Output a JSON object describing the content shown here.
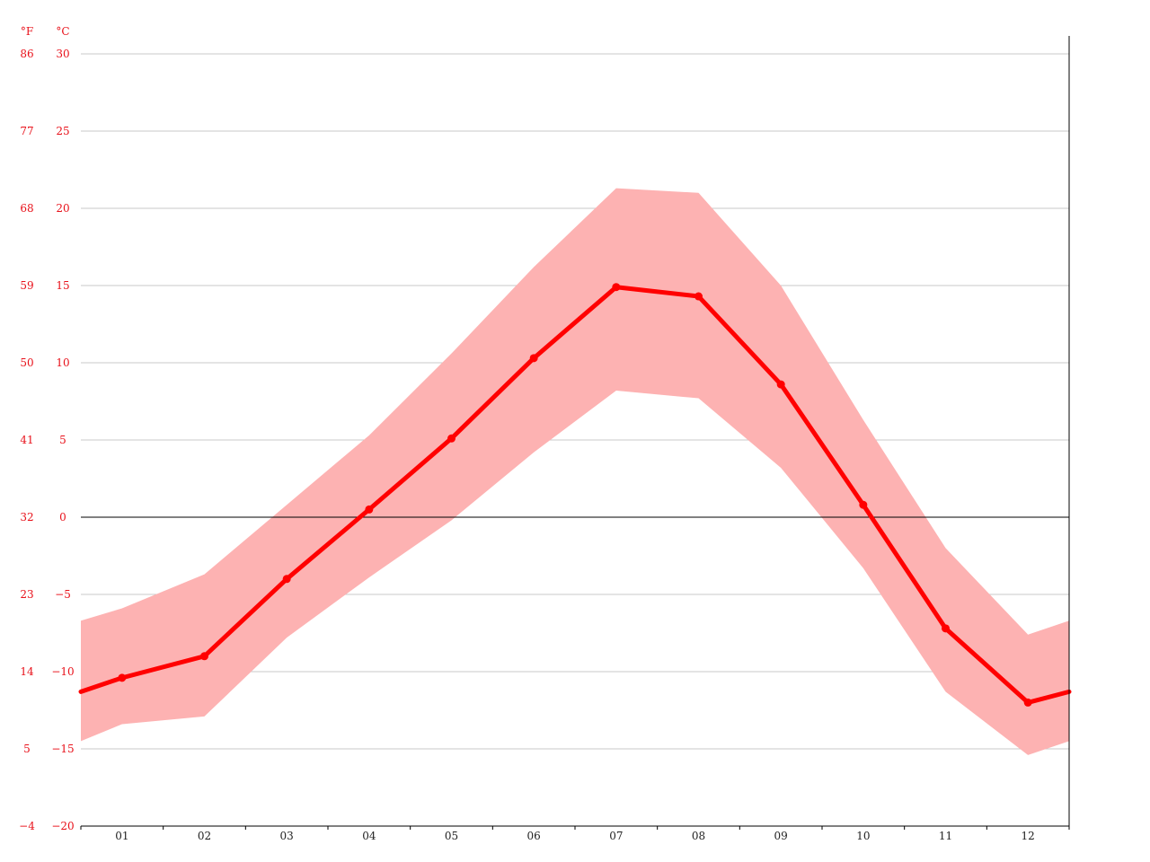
{
  "chart_data": {
    "type": "line",
    "categories": [
      "01",
      "02",
      "03",
      "04",
      "05",
      "06",
      "07",
      "08",
      "09",
      "10",
      "11",
      "12"
    ],
    "series": [
      {
        "role": "mean",
        "values": [
          -10.4,
          -9.0,
          -4.0,
          0.5,
          5.1,
          10.3,
          14.9,
          14.3,
          8.6,
          0.8,
          -7.2,
          -12.0
        ]
      },
      {
        "role": "max",
        "values": [
          -5.9,
          -3.7,
          0.8,
          5.3,
          10.6,
          16.2,
          21.3,
          21.0,
          15.0,
          6.3,
          -2.0,
          -7.6
        ]
      },
      {
        "role": "min",
        "values": [
          -13.4,
          -12.9,
          -7.8,
          -3.9,
          -0.2,
          4.2,
          8.2,
          7.7,
          3.2,
          -3.3,
          -11.3,
          -15.4
        ]
      }
    ],
    "edge_values": {
      "mean": {
        "start": -11.3,
        "end": -11.3
      },
      "max": {
        "start": -6.7,
        "end": -6.7
      },
      "min": {
        "start": -14.5,
        "end": -14.5
      }
    },
    "title": "",
    "xlabel": "",
    "ylabel": "",
    "units": {
      "fahrenheit": "°F",
      "celsius": "°C"
    },
    "ylim": [
      -20,
      30
    ],
    "y_ticks_celsius": [
      "30",
      "25",
      "20",
      "15",
      "10",
      "5",
      "0",
      "−5",
      "−10",
      "−15",
      "−20"
    ],
    "y_ticks_fahrenheit": [
      "86",
      "77",
      "68",
      "59",
      "50",
      "41",
      "32",
      "23",
      "14",
      "5",
      "−4"
    ],
    "grid": true,
    "colors": {
      "line": "#ff0000",
      "band": "#fdb2b2",
      "ticks": "#e8111a",
      "grid": "#c8c8c8",
      "axis": "#000000"
    }
  }
}
